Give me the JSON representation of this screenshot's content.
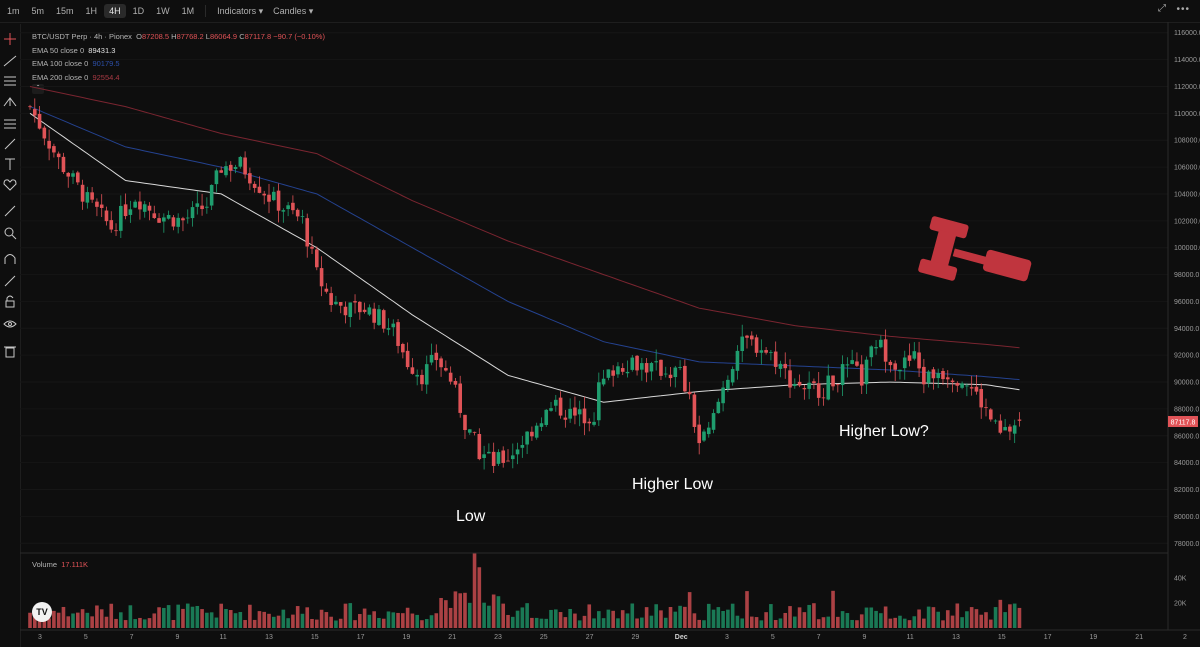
{
  "timeframes": [
    "1m",
    "5m",
    "15m",
    "1H",
    "4H",
    "1D",
    "1W",
    "1M"
  ],
  "active_timeframe": "4H",
  "menu": {
    "indicators": "Indicators",
    "candles": "Candles"
  },
  "legend": {
    "symbol": "BTC/USDT Perp",
    "interval": "4h",
    "exchange": "Pionex",
    "ohlc": {
      "o_label": "O",
      "o": "87208.5",
      "h_label": "H",
      "h": "87768.2",
      "l_label": "L",
      "l": "86064.9",
      "c_label": "C",
      "c": "87117.8",
      "change": "−90.7 (−0.10%)"
    },
    "ema50": {
      "label": "EMA 50 close 0",
      "value": "89431.3",
      "color": "#e0e0e0"
    },
    "ema100": {
      "label": "EMA 100 close 0",
      "value": "90179.5",
      "color": "#2c4fa8"
    },
    "ema200": {
      "label": "EMA 200 close 0",
      "value": "92554.4",
      "color": "#8a2a35"
    }
  },
  "volume": {
    "label": "Volume",
    "value": "17.111K"
  },
  "price_badge": "87117.8",
  "colors": {
    "up": "#1f9d6e",
    "down": "#e05357",
    "badge": "#e05357",
    "gavel": "#c0353e"
  },
  "annotations": [
    "Low",
    "Higher Low",
    "Higher Low?"
  ],
  "chart_data": {
    "type": "candlestick",
    "x_ticks": [
      "3",
      "5",
      "7",
      "9",
      "11",
      "13",
      "15",
      "17",
      "19",
      "21",
      "23",
      "25",
      "27",
      "29",
      "Dec",
      "3",
      "5",
      "7",
      "9",
      "11",
      "13",
      "15",
      "17",
      "19",
      "21",
      "2"
    ],
    "y_ticks": [
      "116000.0",
      "114000.0",
      "112000.0",
      "110000.0",
      "108000.0",
      "106000.0",
      "104000.0",
      "102000.0",
      "100000.0",
      "98000.0",
      "96000.0",
      "94000.0",
      "92000.0",
      "90000.0",
      "88000.0",
      "86000.0",
      "84000.0",
      "82000.0",
      "80000.0",
      "78000.0"
    ],
    "ylim": [
      77500,
      116500
    ],
    "volume_ticks": [
      "40K",
      "20K"
    ],
    "price_path": [
      [
        0,
        110500
      ],
      [
        6,
        106500
      ],
      [
        12,
        103500
      ],
      [
        17,
        101500
      ],
      [
        22,
        103800
      ],
      [
        27,
        102400
      ],
      [
        32,
        102000
      ],
      [
        37,
        103200
      ],
      [
        40,
        106000
      ],
      [
        44,
        106200
      ],
      [
        47,
        105000
      ],
      [
        50,
        103800
      ],
      [
        53,
        103000
      ],
      [
        57,
        102000
      ],
      [
        60,
        98000
      ],
      [
        63,
        96000
      ],
      [
        67,
        95400
      ],
      [
        70,
        95500
      ],
      [
        73,
        94800
      ],
      [
        76,
        93800
      ],
      [
        79,
        91500
      ],
      [
        82,
        90500
      ],
      [
        85,
        91800
      ],
      [
        88,
        90200
      ],
      [
        91,
        87000
      ],
      [
        94,
        84800
      ],
      [
        97,
        84000
      ],
      [
        100,
        84400
      ],
      [
        103,
        85600
      ],
      [
        107,
        87400
      ],
      [
        110,
        88200
      ],
      [
        114,
        87400
      ],
      [
        118,
        87600
      ],
      [
        119,
        89500
      ],
      [
        122,
        91000
      ],
      [
        126,
        91600
      ],
      [
        130,
        91000
      ],
      [
        134,
        90800
      ],
      [
        136,
        90700
      ],
      [
        138,
        88500
      ],
      [
        140,
        85500
      ],
      [
        142,
        86200
      ],
      [
        145,
        89600
      ],
      [
        148,
        92400
      ],
      [
        150,
        93000
      ],
      [
        153,
        92600
      ],
      [
        156,
        91700
      ],
      [
        159,
        90200
      ],
      [
        163,
        89500
      ],
      [
        166,
        89500
      ],
      [
        169,
        90500
      ],
      [
        172,
        91000
      ],
      [
        174,
        90200
      ],
      [
        177,
        93000
      ],
      [
        179,
        92200
      ],
      [
        182,
        91200
      ],
      [
        185,
        91800
      ],
      [
        187,
        90200
      ],
      [
        190,
        90800
      ],
      [
        193,
        90600
      ],
      [
        196,
        90000
      ],
      [
        199,
        88500
      ],
      [
        201,
        87200
      ],
      [
        203,
        86000
      ],
      [
        205,
        86500
      ],
      [
        207,
        87100
      ]
    ],
    "ema50": [
      [
        0,
        110000
      ],
      [
        20,
        105000
      ],
      [
        40,
        104000
      ],
      [
        60,
        100000
      ],
      [
        80,
        95000
      ],
      [
        100,
        90500
      ],
      [
        120,
        88500
      ],
      [
        140,
        89300
      ],
      [
        160,
        89800
      ],
      [
        180,
        90000
      ],
      [
        200,
        89800
      ],
      [
        207,
        89431
      ]
    ],
    "ema100": [
      [
        0,
        110500
      ],
      [
        20,
        107500
      ],
      [
        40,
        106000
      ],
      [
        60,
        104000
      ],
      [
        80,
        100000
      ],
      [
        100,
        96000
      ],
      [
        120,
        93000
      ],
      [
        140,
        91500
      ],
      [
        160,
        91200
      ],
      [
        180,
        90900
      ],
      [
        200,
        90400
      ],
      [
        207,
        90180
      ]
    ],
    "ema200": [
      [
        0,
        112000
      ],
      [
        20,
        110500
      ],
      [
        40,
        108500
      ],
      [
        60,
        107000
      ],
      [
        80,
        103500
      ],
      [
        100,
        100500
      ],
      [
        120,
        98000
      ],
      [
        140,
        95500
      ],
      [
        160,
        94200
      ],
      [
        180,
        93400
      ],
      [
        200,
        92800
      ],
      [
        207,
        92554
      ]
    ]
  }
}
